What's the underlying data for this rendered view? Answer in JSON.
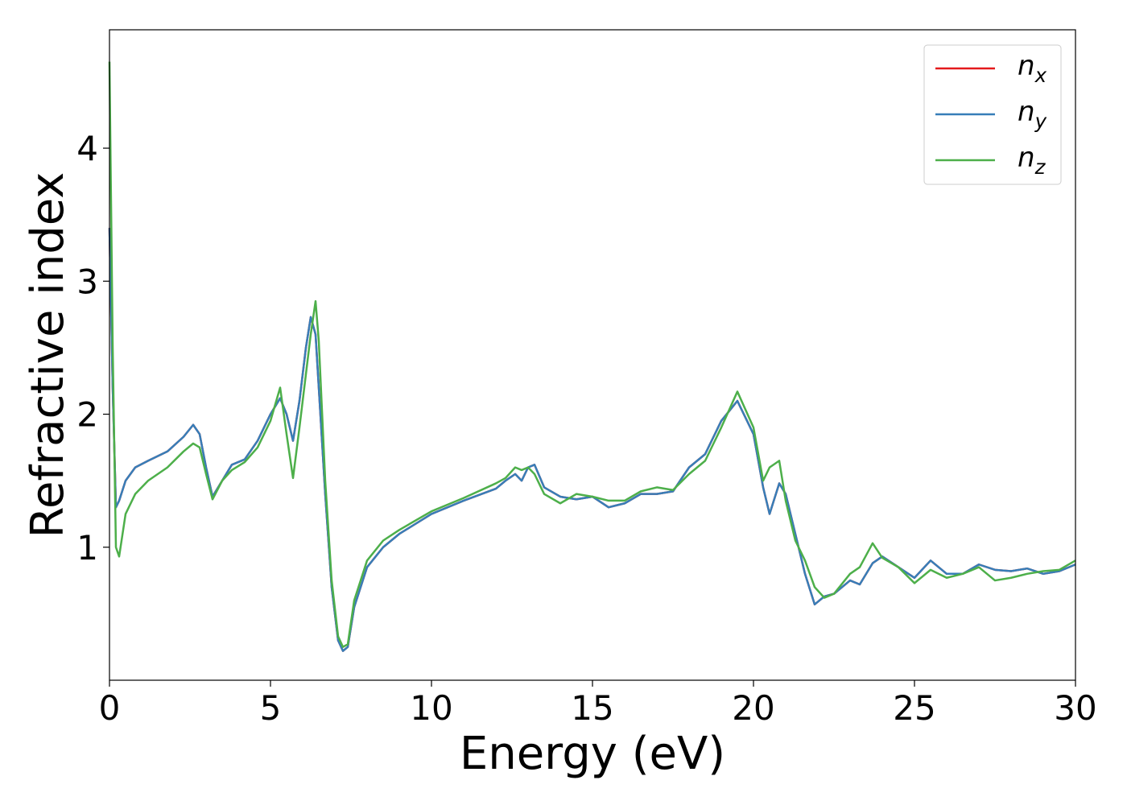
{
  "chart_data": {
    "type": "line",
    "x_label": "Energy (eV)",
    "y_label": "Refractive index",
    "x": [
      0,
      0.1,
      0.2,
      0.3,
      0.5,
      0.8,
      1.2,
      1.8,
      2.3,
      2.6,
      2.8,
      3.0,
      3.2,
      3.5,
      3.8,
      4.2,
      4.6,
      5.0,
      5.3,
      5.5,
      5.7,
      5.9,
      6.1,
      6.25,
      6.4,
      6.5,
      6.7,
      6.9,
      7.1,
      7.25,
      7.4,
      7.6,
      8.0,
      8.5,
      9.0,
      10,
      11,
      12,
      12.3,
      12.6,
      12.8,
      13.0,
      13.2,
      13.5,
      14,
      14.5,
      15,
      15.5,
      16,
      16.5,
      17,
      17.5,
      18,
      18.5,
      19,
      19.5,
      20,
      20.3,
      20.5,
      20.8,
      21,
      21.3,
      21.6,
      21.9,
      22.2,
      22.5,
      23,
      23.3,
      23.7,
      24,
      24.5,
      25,
      25.5,
      26,
      26.5,
      27,
      27.5,
      28,
      28.5,
      29,
      29.5,
      30
    ],
    "series": [
      {
        "name": "n_x",
        "color": "#e41a1c",
        "values": [
          3.4,
          2.2,
          1.3,
          1.35,
          1.5,
          1.6,
          1.65,
          1.72,
          1.83,
          1.92,
          1.85,
          1.6,
          1.38,
          1.5,
          1.62,
          1.66,
          1.8,
          2.0,
          2.12,
          2.0,
          1.8,
          2.1,
          2.5,
          2.73,
          2.6,
          2.2,
          1.4,
          0.7,
          0.3,
          0.22,
          0.25,
          0.55,
          0.85,
          1.0,
          1.1,
          1.25,
          1.35,
          1.44,
          1.5,
          1.55,
          1.5,
          1.6,
          1.62,
          1.45,
          1.38,
          1.36,
          1.38,
          1.3,
          1.33,
          1.4,
          1.4,
          1.42,
          1.6,
          1.7,
          1.95,
          2.1,
          1.85,
          1.45,
          1.25,
          1.48,
          1.4,
          1.1,
          0.8,
          0.57,
          0.63,
          0.65,
          0.75,
          0.72,
          0.88,
          0.93,
          0.85,
          0.77,
          0.9,
          0.8,
          0.8,
          0.87,
          0.83,
          0.82,
          0.84,
          0.8,
          0.82,
          0.87
        ]
      },
      {
        "name": "n_y",
        "color": "#377eb8",
        "values": [
          3.4,
          2.2,
          1.3,
          1.35,
          1.5,
          1.6,
          1.65,
          1.72,
          1.83,
          1.92,
          1.85,
          1.6,
          1.38,
          1.5,
          1.62,
          1.66,
          1.8,
          2.0,
          2.12,
          2.0,
          1.8,
          2.1,
          2.5,
          2.73,
          2.6,
          2.2,
          1.4,
          0.7,
          0.3,
          0.22,
          0.25,
          0.55,
          0.85,
          1.0,
          1.1,
          1.25,
          1.35,
          1.44,
          1.5,
          1.55,
          1.5,
          1.6,
          1.62,
          1.45,
          1.38,
          1.36,
          1.38,
          1.3,
          1.33,
          1.4,
          1.4,
          1.42,
          1.6,
          1.7,
          1.95,
          2.1,
          1.85,
          1.45,
          1.25,
          1.48,
          1.4,
          1.1,
          0.8,
          0.57,
          0.63,
          0.65,
          0.75,
          0.72,
          0.88,
          0.93,
          0.85,
          0.77,
          0.9,
          0.8,
          0.8,
          0.87,
          0.83,
          0.82,
          0.84,
          0.8,
          0.82,
          0.87
        ]
      },
      {
        "name": "n_z",
        "color": "#4daf4a",
        "values": [
          4.65,
          2.5,
          1.0,
          0.93,
          1.25,
          1.4,
          1.5,
          1.6,
          1.72,
          1.78,
          1.75,
          1.55,
          1.36,
          1.5,
          1.58,
          1.64,
          1.75,
          1.95,
          2.2,
          1.85,
          1.52,
          1.9,
          2.3,
          2.6,
          2.85,
          2.55,
          1.5,
          0.75,
          0.33,
          0.25,
          0.27,
          0.6,
          0.9,
          1.05,
          1.13,
          1.27,
          1.37,
          1.48,
          1.52,
          1.6,
          1.58,
          1.6,
          1.55,
          1.4,
          1.33,
          1.4,
          1.38,
          1.35,
          1.35,
          1.42,
          1.45,
          1.43,
          1.55,
          1.65,
          1.9,
          2.17,
          1.9,
          1.5,
          1.6,
          1.65,
          1.35,
          1.05,
          0.9,
          0.7,
          0.62,
          0.65,
          0.8,
          0.85,
          1.03,
          0.92,
          0.85,
          0.73,
          0.83,
          0.77,
          0.8,
          0.85,
          0.75,
          0.77,
          0.8,
          0.82,
          0.83,
          0.9
        ]
      }
    ],
    "xlim": [
      0,
      30
    ],
    "xticks": [
      0,
      5,
      10,
      15,
      20,
      25,
      30
    ],
    "ylim": [
      0,
      4.89
    ],
    "yticks": [
      1,
      2,
      3,
      4
    ],
    "grid": false,
    "legend": "upper right"
  }
}
